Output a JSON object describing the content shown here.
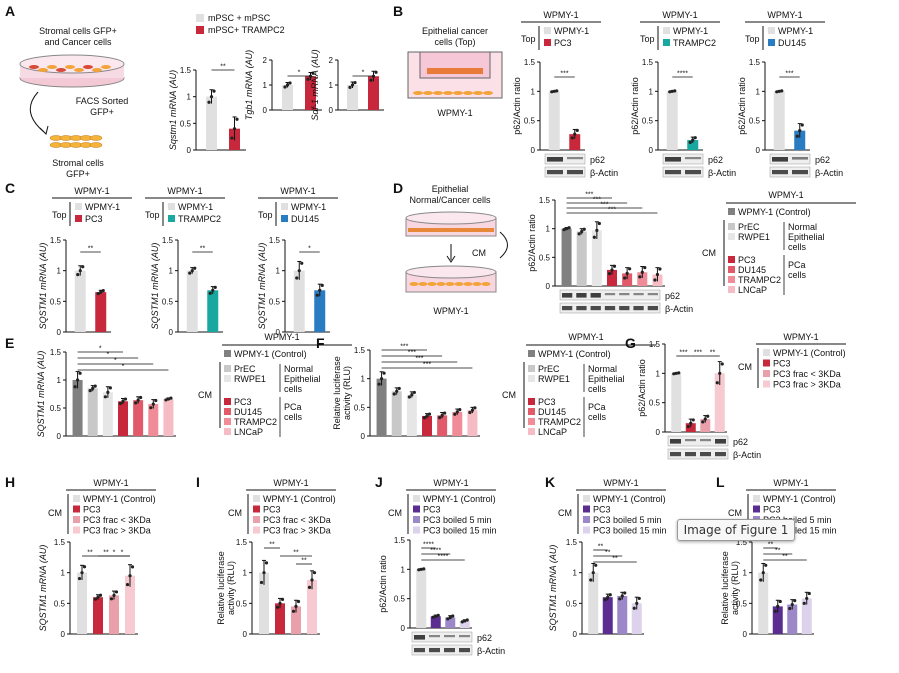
{
  "figure_tooltip": "Image of Figure 1",
  "colors": {
    "control": "#e0e0e0",
    "pc3": "#c8283c",
    "tramp": "#19a8a0",
    "du145": "#2a7cc2",
    "prec": "#c8c8c8",
    "rwpe": "#e6e6e6",
    "dark": "#808080",
    "du145pca": "#e05a6a",
    "tramp2pca": "#ef8c98",
    "lncap": "#f6bcc4",
    "frac_lo": "#eaa0aa",
    "frac_hi": "#f6cad0",
    "purple": "#5c2d91",
    "lav": "#9c88c8",
    "lav2": "#ddd2ec"
  },
  "panelA": {
    "letter": "A",
    "diagram_top": "Stromal cells GFP+\nand Cancer cells",
    "diagram_sort": "FACS Sorted\nGFP+",
    "diagram_bottom": "Stromal cells\nGFP+",
    "legend": [
      "mPSC + mPSC",
      "mPSC+ TRAMPC2"
    ]
  },
  "panelB": {
    "letter": "B",
    "diagram_title": "Epithelial cancer\ncells (Top)",
    "diagram_label": "WPMY-1"
  },
  "panelC": {
    "letter": "C"
  },
  "panelD": {
    "letter": "D",
    "diagram_title": "Epithelial\nNormal/Cancer cells",
    "cm": "CM",
    "diagram_label": "WPMY-1"
  },
  "panelE": {
    "letter": "E"
  },
  "panelF": {
    "letter": "F"
  },
  "panelG": {
    "letter": "G"
  },
  "panelH": {
    "letter": "H"
  },
  "panelI": {
    "letter": "I"
  },
  "panelJ": {
    "letter": "J"
  },
  "panelK": {
    "letter": "K"
  },
  "panelL": {
    "letter": "L"
  },
  "cmLegend": {
    "header": "WPMY-1",
    "control": "WPMY-1 (Control)",
    "normal": [
      "PrEC",
      "RWPE1"
    ],
    "normal_label": "Normal\nEpithelial\ncells",
    "cm": "CM",
    "pca": [
      "PC3",
      "DU145",
      "TRAMPC2",
      "LNCaP"
    ],
    "pca_label": "PCa\ncells"
  },
  "fracLegend": {
    "header": "WPMY-1",
    "cm": "CM",
    "items": [
      "WPMY-1 (Control)",
      "PC3",
      "PC3 frac < 3KDa",
      "PC3 frac > 3KDa"
    ]
  },
  "boilLegend": {
    "header": "WPMY-1",
    "cm": "CM",
    "items": [
      "WPMY-1 (Control)",
      "PC3",
      "PC3 boiled 5 min",
      "PC3 boiled 15 min"
    ]
  },
  "topLegends": {
    "pc3": {
      "header": "WPMY-1",
      "top": "Top",
      "items": [
        "WPMY-1",
        "PC3"
      ]
    },
    "tramp": {
      "header": "WPMY-1",
      "top": "Top",
      "items": [
        "WPMY-1",
        "TRAMPC2"
      ]
    },
    "du145": {
      "header": "WPMY-1",
      "top": "Top",
      "items": [
        "WPMY-1",
        "DU145"
      ]
    }
  },
  "blot": {
    "p62": "p62",
    "actin": "β-Actin"
  },
  "chart_data": [
    {
      "panel": "A",
      "type": "bar",
      "ylabel": "Sqstm1 mRNA (AU)",
      "ylim": [
        0,
        1.5
      ],
      "yticks": [
        0,
        0.5,
        1,
        1.5
      ],
      "categories": [
        "mPSC + mPSC",
        "mPSC+ TRAMPC2"
      ],
      "values": [
        1.0,
        0.4
      ],
      "errors": [
        0.13,
        0.22
      ],
      "sig": "**"
    },
    {
      "panel": "A",
      "type": "bar",
      "ylabel": "Tgb1 mRNA (AU)",
      "ylim": [
        0,
        2
      ],
      "yticks": [
        0,
        1,
        2
      ],
      "categories": [
        "mPSC + mPSC",
        "mPSC+ TRAMPC2"
      ],
      "values": [
        1.0,
        1.35
      ],
      "errors": [
        0.1,
        0.15
      ],
      "sig": "*"
    },
    {
      "panel": "A",
      "type": "bar",
      "ylabel": "Sdf-1 mRNA (AU)",
      "ylim": [
        0,
        2
      ],
      "yticks": [
        0,
        1,
        2
      ],
      "categories": [
        "mPSC + mPSC",
        "mPSC+ TRAMPC2"
      ],
      "values": [
        1.0,
        1.35
      ],
      "errors": [
        0.12,
        0.2
      ],
      "sig": "*"
    },
    {
      "panel": "B",
      "type": "bar",
      "ylabel": "p62/Actin ratio",
      "ylim": [
        0,
        1.5
      ],
      "yticks": [
        0,
        0.5,
        1,
        1.5
      ],
      "categories": [
        "WPMY-1",
        "PC3"
      ],
      "values": [
        1.0,
        0.27
      ],
      "errors": [
        0.01,
        0.08
      ],
      "sig": "***"
    },
    {
      "panel": "B",
      "type": "bar",
      "ylabel": "p62/Actin ratio",
      "ylim": [
        0,
        1.5
      ],
      "yticks": [
        0,
        0.5,
        1,
        1.5
      ],
      "categories": [
        "WPMY-1",
        "TRAMPC2"
      ],
      "values": [
        1.0,
        0.17
      ],
      "errors": [
        0.01,
        0.05
      ],
      "sig": "****"
    },
    {
      "panel": "B",
      "type": "bar",
      "ylabel": "p62/Actin ratio",
      "ylim": [
        0,
        1.5
      ],
      "yticks": [
        0,
        0.5,
        1,
        1.5
      ],
      "categories": [
        "WPMY-1",
        "DU145"
      ],
      "values": [
        1.0,
        0.33
      ],
      "errors": [
        0.01,
        0.12
      ],
      "sig": "***"
    },
    {
      "panel": "C",
      "type": "bar",
      "ylabel": "SQSTM1 mRNA (AU)",
      "ylim": [
        0,
        1.5
      ],
      "yticks": [
        0,
        0.5,
        1,
        1.5
      ],
      "categories": [
        "WPMY-1",
        "PC3"
      ],
      "values": [
        1.0,
        0.65
      ],
      "errors": [
        0.08,
        0.03
      ],
      "sig": "**"
    },
    {
      "panel": "C",
      "type": "bar",
      "ylabel": "SQSTM1 mRNA (AU)",
      "ylim": [
        0,
        1.5
      ],
      "yticks": [
        0,
        0.5,
        1,
        1.5
      ],
      "categories": [
        "WPMY-1",
        "TRAMPC2"
      ],
      "values": [
        1.0,
        0.68
      ],
      "errors": [
        0.05,
        0.06
      ],
      "sig": "**"
    },
    {
      "panel": "C",
      "type": "bar",
      "ylabel": "SQSTM1 mRNA (AU)",
      "ylim": [
        0,
        1.5
      ],
      "yticks": [
        0,
        0.5,
        1,
        1.5
      ],
      "categories": [
        "WPMY-1",
        "DU145"
      ],
      "values": [
        1.0,
        0.68
      ],
      "errors": [
        0.15,
        0.1
      ],
      "sig": "*"
    },
    {
      "panel": "D",
      "type": "bar",
      "ylabel": "p62/Actin ratio",
      "ylim": [
        0,
        1.5
      ],
      "yticks": [
        0,
        0.5,
        1,
        1.5
      ],
      "categories": [
        "WPMY-1 (Control)",
        "PrEC",
        "RWPE1",
        "PC3",
        "DU145",
        "TRAMPC2",
        "LNCaP"
      ],
      "values": [
        1.0,
        0.95,
        0.97,
        0.28,
        0.22,
        0.24,
        0.2
      ],
      "errors": [
        0.02,
        0.05,
        0.15,
        0.08,
        0.1,
        0.1,
        0.12
      ],
      "sig": [
        "***",
        "***",
        "***",
        "***"
      ]
    },
    {
      "panel": "E",
      "type": "bar",
      "ylabel": "SQSTM1 mRNA (AU)",
      "ylim": [
        0,
        1.5
      ],
      "yticks": [
        0,
        0.5,
        1,
        1.5
      ],
      "categories": [
        "WPMY-1 (Control)",
        "PrEC",
        "RWPE1",
        "PC3",
        "DU145",
        "TRAMPC2",
        "LNCaP"
      ],
      "values": [
        1.0,
        0.85,
        0.78,
        0.62,
        0.64,
        0.57,
        0.66
      ],
      "errors": [
        0.15,
        0.05,
        0.1,
        0.05,
        0.06,
        0.08,
        0.02
      ],
      "sig": [
        "*",
        "*",
        "*",
        "*"
      ]
    },
    {
      "panel": "F",
      "type": "bar",
      "ylabel": "Relative luciferase\nactivity (RLU)",
      "ylim": [
        0,
        1.5
      ],
      "yticks": [
        0,
        0.5,
        1,
        1.5
      ],
      "categories": [
        "WPMY-1 (Control)",
        "PrEC",
        "RWPE1",
        "PC3",
        "DU145",
        "TRAMPC2",
        "LNCaP"
      ],
      "values": [
        1.0,
        0.78,
        0.72,
        0.35,
        0.36,
        0.42,
        0.45
      ],
      "errors": [
        0.12,
        0.06,
        0.05,
        0.04,
        0.05,
        0.05,
        0.05
      ],
      "sig": [
        "***",
        "***",
        "***",
        "***"
      ]
    },
    {
      "panel": "G",
      "type": "bar",
      "ylabel": "p62/Actin ratio",
      "ylim": [
        0,
        1.5
      ],
      "yticks": [
        0,
        0.5,
        1,
        1.5
      ],
      "categories": [
        "WPMY-1 (Control)",
        "PC3",
        "PC3 frac < 3KDa",
        "PC3 frac > 3KDa"
      ],
      "values": [
        1.0,
        0.15,
        0.22,
        1.0
      ],
      "errors": [
        0.01,
        0.07,
        0.06,
        0.2
      ],
      "sig": [
        "***",
        "***",
        "**"
      ]
    },
    {
      "panel": "H",
      "type": "bar",
      "ylabel": "SQSTM1 mRNA (AU)",
      "ylim": [
        0,
        1.5
      ],
      "yticks": [
        0,
        0.5,
        1,
        1.5
      ],
      "categories": [
        "WPMY-1 (Control)",
        "PC3",
        "PC3 frac < 3KDa",
        "PC3 frac > 3KDa"
      ],
      "values": [
        1.0,
        0.6,
        0.63,
        0.95
      ],
      "errors": [
        0.12,
        0.04,
        0.07,
        0.18
      ],
      "sig": [
        "**",
        "**",
        "*",
        "*"
      ]
    },
    {
      "panel": "I",
      "type": "bar",
      "ylabel": "Relative luciferase\nactivity (RLU)",
      "ylim": [
        0,
        1.5
      ],
      "yticks": [
        0,
        0.5,
        1,
        1.5
      ],
      "categories": [
        "WPMY-1 (Control)",
        "PC3",
        "PC3 frac < 3KDa",
        "PC3 frac > 3KDa"
      ],
      "values": [
        1.0,
        0.5,
        0.45,
        0.88
      ],
      "errors": [
        0.2,
        0.08,
        0.1,
        0.15
      ],
      "sig": [
        "**",
        "**",
        "**"
      ]
    },
    {
      "panel": "J",
      "type": "bar",
      "ylabel": "p62/Actin ratio",
      "ylim": [
        0,
        1.5
      ],
      "yticks": [
        0,
        0.5,
        1,
        1.5
      ],
      "categories": [
        "WPMY-1 (Control)",
        "PC3",
        "PC3 boiled 5 min",
        "PC3 boiled 15 min"
      ],
      "values": [
        1.0,
        0.2,
        0.18,
        0.12
      ],
      "errors": [
        0.01,
        0.02,
        0.03,
        0.02
      ],
      "sig": [
        "****",
        "****",
        "****"
      ]
    },
    {
      "panel": "K",
      "type": "bar",
      "ylabel": "SQSTM1 mRNA (AU)",
      "ylim": [
        0,
        1.5
      ],
      "yticks": [
        0,
        0.5,
        1,
        1.5
      ],
      "categories": [
        "WPMY-1 (Control)",
        "PC3",
        "PC3 boiled 5 min",
        "PC3 boiled 15 min"
      ],
      "values": [
        1.0,
        0.6,
        0.62,
        0.5
      ],
      "errors": [
        0.15,
        0.05,
        0.06,
        0.1
      ],
      "sig": [
        "**",
        "**",
        "**"
      ]
    },
    {
      "panel": "L",
      "type": "bar",
      "ylabel": "Relative luciferase\nactivity (RLU)",
      "ylim": [
        0,
        1.5
      ],
      "yticks": [
        0,
        0.5,
        1,
        1.5
      ],
      "categories": [
        "WPMY-1 (Control)",
        "PC3",
        "PC3 boiled 5 min",
        "PC3 boiled 15 min"
      ],
      "values": [
        1.0,
        0.45,
        0.48,
        0.58
      ],
      "errors": [
        0.15,
        0.1,
        0.08,
        0.1
      ],
      "sig": [
        "**",
        "**",
        "**"
      ]
    }
  ]
}
